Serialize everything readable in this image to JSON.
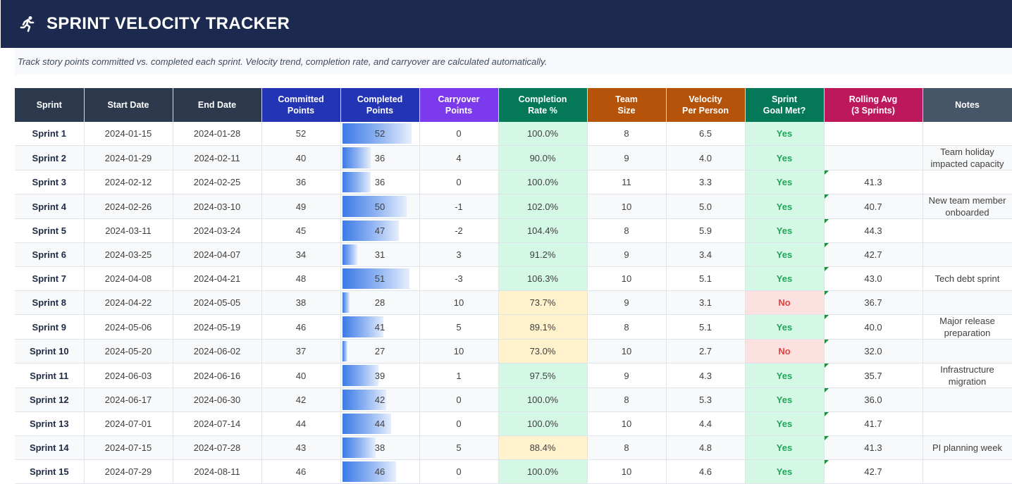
{
  "header": {
    "title": "SPRINT VELOCITY TRACKER",
    "logo_icon": "running-person-icon",
    "subtitle": "Track story points committed vs. completed each sprint. Velocity trend, completion rate, and carryover are calculated automatically."
  },
  "columns": [
    {
      "label": "Sprint",
      "color": "#2d3a4e"
    },
    {
      "label": "Start Date",
      "color": "#2d3a4e"
    },
    {
      "label": "End Date",
      "color": "#2d3a4e"
    },
    {
      "label": "Committed\nPoints",
      "color": "#2335b5"
    },
    {
      "label": "Completed\nPoints",
      "color": "#2335b5"
    },
    {
      "label": "Carryover\nPoints",
      "color": "#7c3aed"
    },
    {
      "label": "Completion\nRate %",
      "color": "#047857"
    },
    {
      "label": "Team\nSize",
      "color": "#b45309"
    },
    {
      "label": "Velocity\nPer Person",
      "color": "#b45309"
    },
    {
      "label": "Sprint\nGoal Met?",
      "color": "#047857"
    },
    {
      "label": "Rolling Avg\n(3 Sprints)",
      "color": "#be185d"
    },
    {
      "label": "Notes",
      "color": "#475569"
    }
  ],
  "bar_max": 54,
  "rows": [
    {
      "sprint": "Sprint 1",
      "start": "2024-01-15",
      "end": "2024-01-28",
      "committed": "52",
      "completed": "52",
      "carryover": "0",
      "rate": "100.0%",
      "rate_status": "good",
      "team": "8",
      "velocity": "6.5",
      "goal": "Yes",
      "rolling": "",
      "notes": ""
    },
    {
      "sprint": "Sprint 2",
      "start": "2024-01-29",
      "end": "2024-02-11",
      "committed": "40",
      "completed": "36",
      "carryover": "4",
      "rate": "90.0%",
      "rate_status": "good",
      "team": "9",
      "velocity": "4.0",
      "goal": "Yes",
      "rolling": "",
      "notes": "Team holiday impacted capacity"
    },
    {
      "sprint": "Sprint 3",
      "start": "2024-02-12",
      "end": "2024-02-25",
      "committed": "36",
      "completed": "36",
      "carryover": "0",
      "rate": "100.0%",
      "rate_status": "good",
      "team": "11",
      "velocity": "3.3",
      "goal": "Yes",
      "rolling": "41.3",
      "notes": ""
    },
    {
      "sprint": "Sprint 4",
      "start": "2024-02-26",
      "end": "2024-03-10",
      "committed": "49",
      "completed": "50",
      "carryover": "-1",
      "rate": "102.0%",
      "rate_status": "good",
      "team": "10",
      "velocity": "5.0",
      "goal": "Yes",
      "rolling": "40.7",
      "notes": "New team member onboarded"
    },
    {
      "sprint": "Sprint 5",
      "start": "2024-03-11",
      "end": "2024-03-24",
      "committed": "45",
      "completed": "47",
      "carryover": "-2",
      "rate": "104.4%",
      "rate_status": "good",
      "team": "8",
      "velocity": "5.9",
      "goal": "Yes",
      "rolling": "44.3",
      "notes": ""
    },
    {
      "sprint": "Sprint 6",
      "start": "2024-03-25",
      "end": "2024-04-07",
      "committed": "34",
      "completed": "31",
      "carryover": "3",
      "rate": "91.2%",
      "rate_status": "good",
      "team": "9",
      "velocity": "3.4",
      "goal": "Yes",
      "rolling": "42.7",
      "notes": ""
    },
    {
      "sprint": "Sprint 7",
      "start": "2024-04-08",
      "end": "2024-04-21",
      "committed": "48",
      "completed": "51",
      "carryover": "-3",
      "rate": "106.3%",
      "rate_status": "good",
      "team": "10",
      "velocity": "5.1",
      "goal": "Yes",
      "rolling": "43.0",
      "notes": "Tech debt sprint"
    },
    {
      "sprint": "Sprint 8",
      "start": "2024-04-22",
      "end": "2024-05-05",
      "committed": "38",
      "completed": "28",
      "carryover": "10",
      "rate": "73.7%",
      "rate_status": "warn",
      "team": "9",
      "velocity": "3.1",
      "goal": "No",
      "rolling": "36.7",
      "notes": ""
    },
    {
      "sprint": "Sprint 9",
      "start": "2024-05-06",
      "end": "2024-05-19",
      "committed": "46",
      "completed": "41",
      "carryover": "5",
      "rate": "89.1%",
      "rate_status": "warn",
      "team": "8",
      "velocity": "5.1",
      "goal": "Yes",
      "rolling": "40.0",
      "notes": "Major release preparation"
    },
    {
      "sprint": "Sprint 10",
      "start": "2024-05-20",
      "end": "2024-06-02",
      "committed": "37",
      "completed": "27",
      "carryover": "10",
      "rate": "73.0%",
      "rate_status": "warn",
      "team": "10",
      "velocity": "2.7",
      "goal": "No",
      "rolling": "32.0",
      "notes": ""
    },
    {
      "sprint": "Sprint 11",
      "start": "2024-06-03",
      "end": "2024-06-16",
      "committed": "40",
      "completed": "39",
      "carryover": "1",
      "rate": "97.5%",
      "rate_status": "good",
      "team": "9",
      "velocity": "4.3",
      "goal": "Yes",
      "rolling": "35.7",
      "notes": "Infrastructure migration"
    },
    {
      "sprint": "Sprint 12",
      "start": "2024-06-17",
      "end": "2024-06-30",
      "committed": "42",
      "completed": "42",
      "carryover": "0",
      "rate": "100.0%",
      "rate_status": "good",
      "team": "8",
      "velocity": "5.3",
      "goal": "Yes",
      "rolling": "36.0",
      "notes": ""
    },
    {
      "sprint": "Sprint 13",
      "start": "2024-07-01",
      "end": "2024-07-14",
      "committed": "44",
      "completed": "44",
      "carryover": "0",
      "rate": "100.0%",
      "rate_status": "good",
      "team": "10",
      "velocity": "4.4",
      "goal": "Yes",
      "rolling": "41.7",
      "notes": ""
    },
    {
      "sprint": "Sprint 14",
      "start": "2024-07-15",
      "end": "2024-07-28",
      "committed": "43",
      "completed": "38",
      "carryover": "5",
      "rate": "88.4%",
      "rate_status": "warn",
      "team": "8",
      "velocity": "4.8",
      "goal": "Yes",
      "rolling": "41.3",
      "notes": "PI planning week"
    },
    {
      "sprint": "Sprint 15",
      "start": "2024-07-29",
      "end": "2024-08-11",
      "committed": "46",
      "completed": "46",
      "carryover": "0",
      "rate": "100.0%",
      "rate_status": "good",
      "team": "10",
      "velocity": "4.6",
      "goal": "Yes",
      "rolling": "42.7",
      "notes": ""
    }
  ]
}
